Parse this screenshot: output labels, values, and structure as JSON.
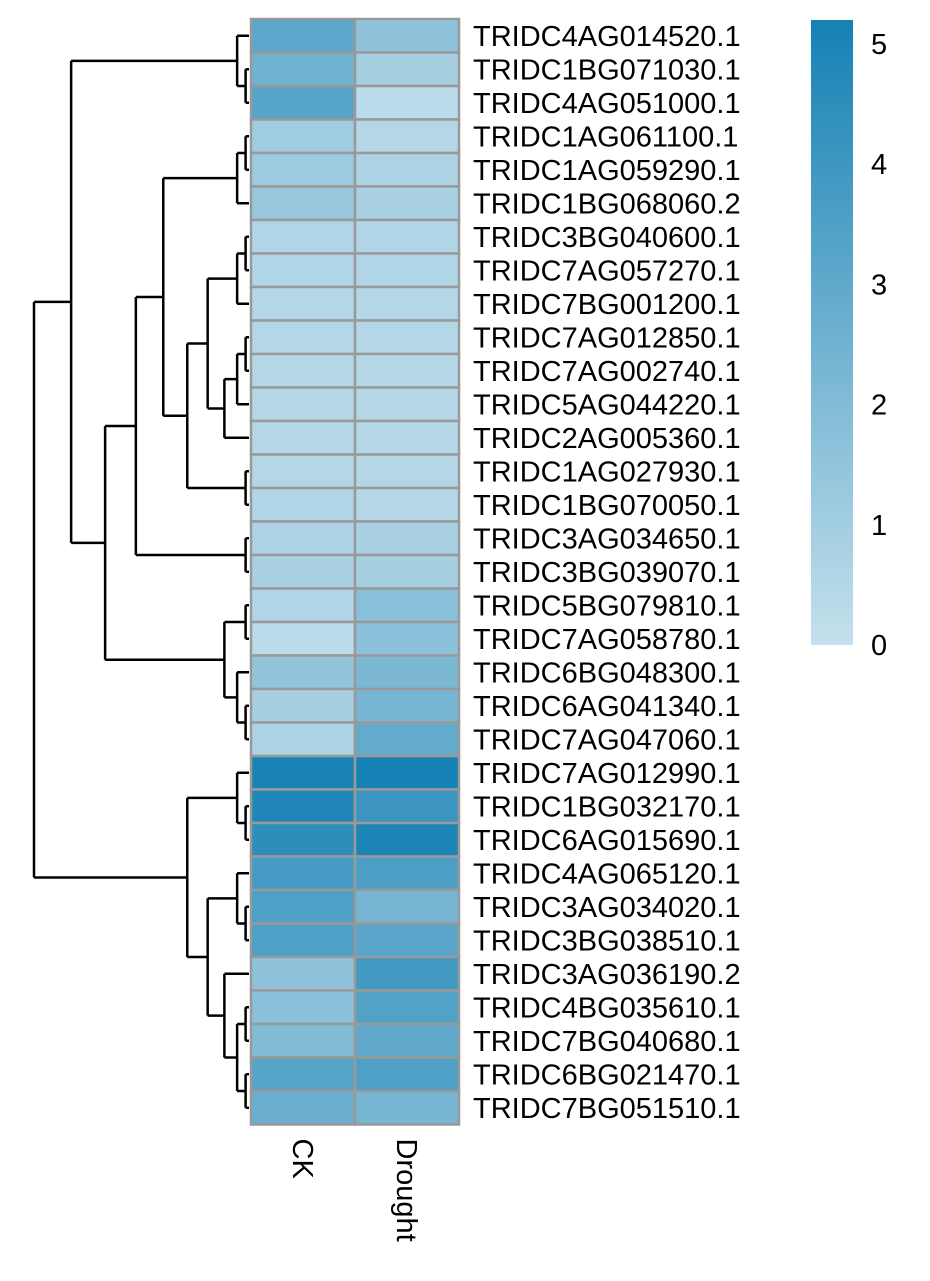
{
  "chart_data": {
    "type": "heatmap",
    "title": "",
    "xlabel": "",
    "ylabel": "",
    "columns": [
      "CK",
      "Drought"
    ],
    "rows": [
      "TRIDC4AG014520.1",
      "TRIDC1BG071030.1",
      "TRIDC4AG051000.1",
      "TRIDC1AG061100.1",
      "TRIDC1AG059290.1",
      "TRIDC1BG068060.2",
      "TRIDC3BG040600.1",
      "TRIDC7AG057270.1",
      "TRIDC7BG001200.1",
      "TRIDC7AG012850.1",
      "TRIDC7AG002740.1",
      "TRIDC5AG044220.1",
      "TRIDC2AG005360.1",
      "TRIDC1AG027930.1",
      "TRIDC1BG070050.1",
      "TRIDC3AG034650.1",
      "TRIDC3BG039070.1",
      "TRIDC5BG079810.1",
      "TRIDC7AG058780.1",
      "TRIDC6BG048300.1",
      "TRIDC6AG041340.1",
      "TRIDC7AG047060.1",
      "TRIDC7AG012990.1",
      "TRIDC1BG032170.1",
      "TRIDC6AG015690.1",
      "TRIDC4AG065120.1",
      "TRIDC3AG034020.1",
      "TRIDC3BG038510.1",
      "TRIDC3AG036190.2",
      "TRIDC4BG035610.1",
      "TRIDC7BG040680.1",
      "TRIDC6BG021470.1",
      "TRIDC7BG051510.1"
    ],
    "values": [
      [
        3.1,
        1.6
      ],
      [
        2.5,
        0.9
      ],
      [
        3.3,
        0.3
      ],
      [
        1.1,
        0.5
      ],
      [
        1.2,
        0.7
      ],
      [
        1.3,
        0.8
      ],
      [
        0.6,
        0.6
      ],
      [
        0.6,
        0.6
      ],
      [
        0.5,
        0.5
      ],
      [
        0.5,
        0.5
      ],
      [
        0.5,
        0.5
      ],
      [
        0.5,
        0.5
      ],
      [
        0.5,
        0.5
      ],
      [
        0.5,
        0.5
      ],
      [
        0.6,
        0.5
      ],
      [
        0.7,
        0.8
      ],
      [
        0.8,
        0.9
      ],
      [
        0.6,
        1.8
      ],
      [
        0.3,
        1.7
      ],
      [
        1.5,
        2.2
      ],
      [
        0.9,
        2.3
      ],
      [
        0.7,
        2.9
      ],
      [
        5.1,
        5.2
      ],
      [
        4.9,
        4.1
      ],
      [
        4.5,
        5.0
      ],
      [
        3.8,
        3.6
      ],
      [
        3.5,
        2.3
      ],
      [
        3.5,
        3.2
      ],
      [
        1.6,
        3.9
      ],
      [
        1.7,
        3.4
      ],
      [
        2.0,
        3.0
      ],
      [
        3.3,
        3.5
      ],
      [
        2.7,
        2.3
      ]
    ],
    "legend": {
      "ticks": [
        0,
        1,
        2,
        3,
        4,
        5
      ],
      "range": [
        0,
        5.2
      ],
      "color_low": "#c4e0ec",
      "color_high": "#1681b4",
      "position": "right"
    },
    "cell_border_color": "#999999",
    "dendrogram": {
      "position": "left",
      "line_color": "#000000"
    }
  }
}
